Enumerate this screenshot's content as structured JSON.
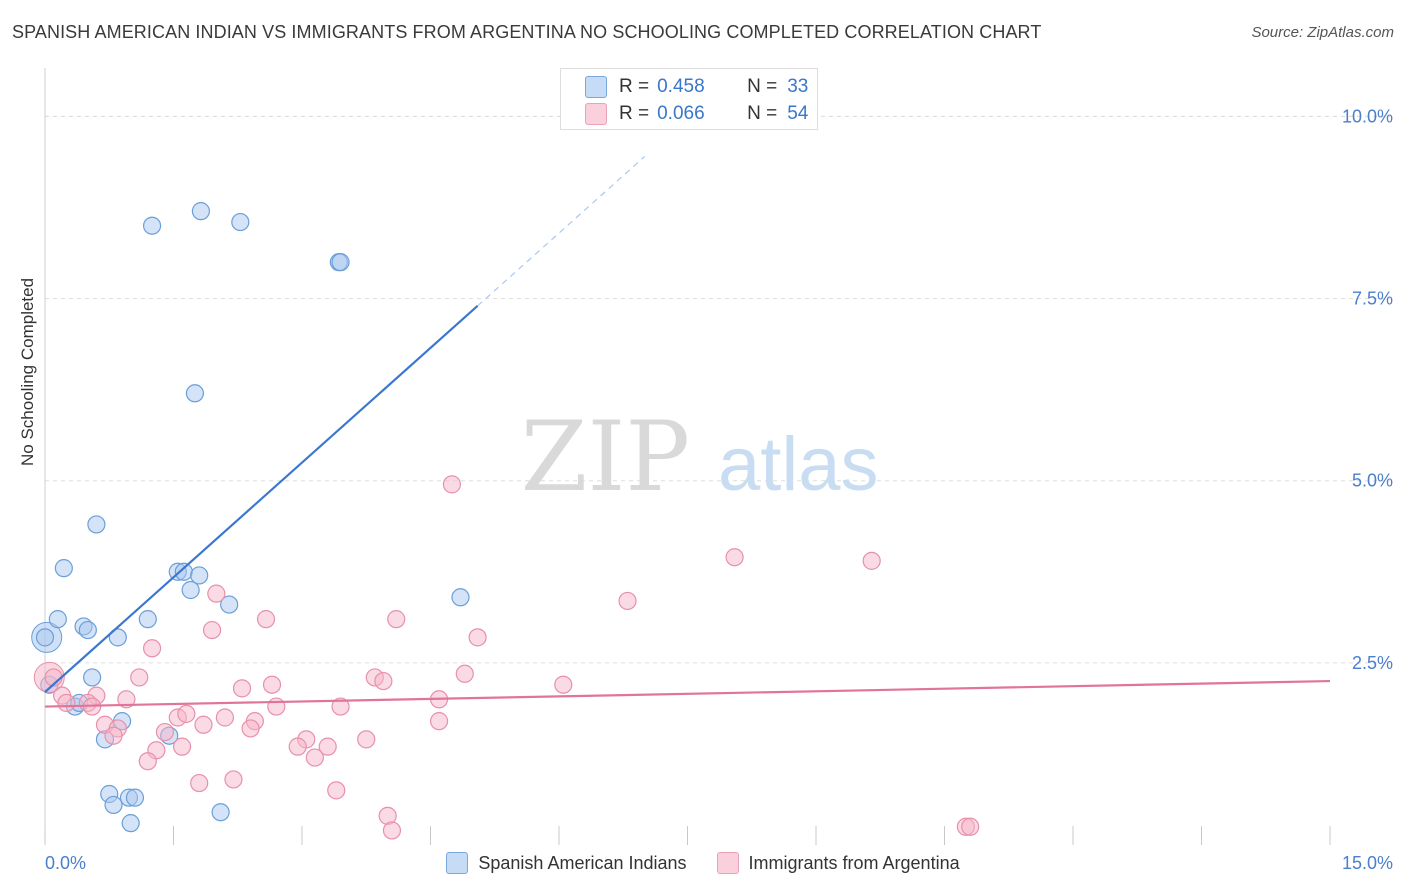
{
  "header": {
    "title": "SPANISH AMERICAN INDIAN VS IMMIGRANTS FROM ARGENTINA NO SCHOOLING COMPLETED CORRELATION CHART",
    "source": "Source: ZipAtlas.com"
  },
  "watermark": {
    "zip": "ZIP",
    "atlas": "atlas"
  },
  "stats": [
    {
      "r_label": "R =",
      "r_value": "0.458",
      "n_label": "N =",
      "n_value": "33",
      "color": "#a9c8f0"
    },
    {
      "r_label": "R =",
      "r_value": "0.066",
      "n_label": "N =",
      "n_value": "54",
      "color": "#f5b6c9"
    }
  ],
  "legend": [
    {
      "label": "Spanish American Indians",
      "color": "#a9c8f0"
    },
    {
      "label": "Immigrants from Argentina",
      "color": "#f5b6c9"
    }
  ],
  "chart_data": {
    "type": "scatter",
    "xlabel": "",
    "ylabel": "No Schooling Completed",
    "xlim": [
      0,
      15
    ],
    "ylim": [
      0,
      10.5
    ],
    "x_tick_labels": [
      "0.0%",
      "15.0%"
    ],
    "y_ticks": [
      2.5,
      5.0,
      7.5,
      10.0
    ],
    "y_tick_labels": [
      "2.5%",
      "5.0%",
      "7.5%",
      "10.0%"
    ],
    "grid": true,
    "series": [
      {
        "name": "Spanish American Indians",
        "color": "#a9c8f0",
        "stroke": "#6a9fd8",
        "trend_color": "#3a77d0",
        "trend": {
          "x0": 0.0,
          "y0": 2.1,
          "x1": 5.05,
          "y1": 7.4,
          "dash_to_x": 7.0,
          "dash_to_y": 9.45
        },
        "points": [
          [
            1.25,
            8.5
          ],
          [
            1.82,
            8.7
          ],
          [
            2.28,
            8.55
          ],
          [
            3.43,
            8.0
          ],
          [
            3.45,
            8.0
          ],
          [
            1.75,
            6.2
          ],
          [
            0.6,
            4.4
          ],
          [
            0.22,
            3.8
          ],
          [
            1.55,
            3.75
          ],
          [
            1.62,
            3.75
          ],
          [
            1.8,
            3.7
          ],
          [
            1.7,
            3.5
          ],
          [
            4.85,
            3.4
          ],
          [
            2.15,
            3.3
          ],
          [
            0.15,
            3.1
          ],
          [
            1.2,
            3.1
          ],
          [
            0.45,
            3.0
          ],
          [
            0.5,
            2.95
          ],
          [
            0.85,
            2.85
          ],
          [
            0.0,
            2.85
          ],
          [
            0.55,
            2.3
          ],
          [
            0.05,
            2.2
          ],
          [
            0.35,
            1.9
          ],
          [
            0.4,
            1.95
          ],
          [
            0.9,
            1.7
          ],
          [
            0.7,
            1.45
          ],
          [
            1.45,
            1.5
          ],
          [
            0.75,
            0.7
          ],
          [
            0.8,
            0.55
          ],
          [
            0.98,
            0.65
          ],
          [
            1.05,
            0.65
          ],
          [
            2.05,
            0.45
          ],
          [
            1.0,
            0.3
          ]
        ],
        "big_points": [
          [
            0.02,
            2.85
          ]
        ]
      },
      {
        "name": "Immigrants from Argentina",
        "color": "#f5b6c9",
        "stroke": "#e890aa",
        "trend_color": "#e0749a",
        "trend": {
          "x0": 0.0,
          "y0": 1.9,
          "x1": 15.0,
          "y1": 2.25
        },
        "points": [
          [
            4.75,
            4.95
          ],
          [
            8.05,
            3.95
          ],
          [
            9.65,
            3.9
          ],
          [
            2.0,
            3.45
          ],
          [
            6.8,
            3.35
          ],
          [
            4.1,
            3.1
          ],
          [
            2.58,
            3.1
          ],
          [
            1.95,
            2.95
          ],
          [
            5.05,
            2.85
          ],
          [
            1.25,
            2.7
          ],
          [
            0.1,
            2.3
          ],
          [
            1.1,
            2.3
          ],
          [
            3.85,
            2.3
          ],
          [
            4.9,
            2.35
          ],
          [
            2.65,
            2.2
          ],
          [
            3.95,
            2.25
          ],
          [
            6.05,
            2.2
          ],
          [
            0.6,
            2.05
          ],
          [
            0.2,
            2.05
          ],
          [
            2.3,
            2.15
          ],
          [
            0.95,
            2.0
          ],
          [
            4.6,
            2.0
          ],
          [
            0.5,
            1.95
          ],
          [
            0.25,
            1.95
          ],
          [
            0.55,
            1.9
          ],
          [
            2.7,
            1.9
          ],
          [
            3.45,
            1.9
          ],
          [
            1.55,
            1.75
          ],
          [
            1.65,
            1.8
          ],
          [
            2.1,
            1.75
          ],
          [
            2.45,
            1.7
          ],
          [
            4.6,
            1.7
          ],
          [
            1.85,
            1.65
          ],
          [
            0.7,
            1.65
          ],
          [
            0.85,
            1.6
          ],
          [
            1.4,
            1.55
          ],
          [
            2.4,
            1.6
          ],
          [
            0.8,
            1.5
          ],
          [
            3.05,
            1.45
          ],
          [
            3.75,
            1.45
          ],
          [
            1.6,
            1.35
          ],
          [
            3.3,
            1.35
          ],
          [
            1.3,
            1.3
          ],
          [
            2.95,
            1.35
          ],
          [
            3.15,
            1.2
          ],
          [
            1.2,
            1.15
          ],
          [
            2.2,
            0.9
          ],
          [
            1.8,
            0.85
          ],
          [
            3.4,
            0.75
          ],
          [
            4.0,
            0.4
          ],
          [
            4.05,
            0.2
          ],
          [
            10.75,
            0.25
          ],
          [
            10.8,
            0.25
          ]
        ],
        "big_points": [
          [
            0.05,
            2.3
          ]
        ]
      }
    ]
  }
}
